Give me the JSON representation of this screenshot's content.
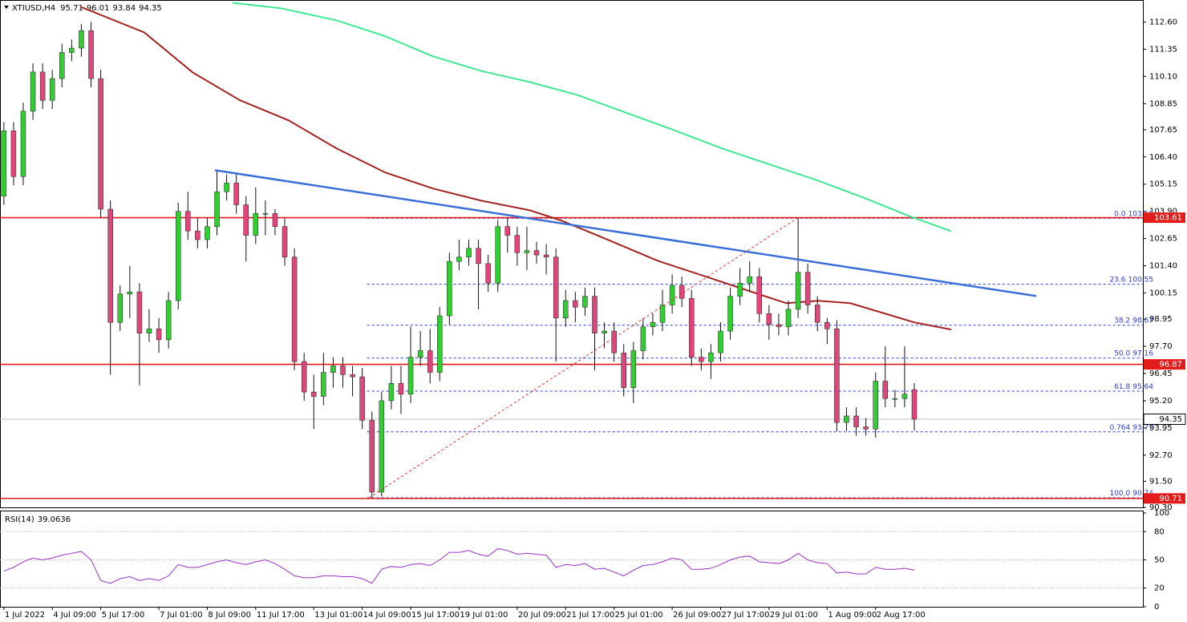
{
  "chart_data": [
    {
      "type": "candlestick",
      "title": "XTIUSD,H4",
      "categories": [
        "1 Jul 2022",
        null,
        null,
        null,
        null,
        "4 Jul 09:00",
        null,
        null,
        null,
        null,
        "5 Jul 17:00",
        null,
        null,
        null,
        null,
        null,
        "7 Jul 01:00",
        null,
        null,
        null,
        null,
        "8 Jul 09:00",
        null,
        null,
        null,
        null,
        "11 Jul 17:00",
        null,
        null,
        null,
        null,
        null,
        "13 Jul 01:00",
        null,
        null,
        null,
        null,
        "14 Jul 09:00",
        null,
        null,
        null,
        null,
        "15 Jul 17:00",
        null,
        null,
        null,
        null,
        "19 Jul 01:00",
        null,
        null,
        null,
        null,
        null,
        "20 Jul 09:00",
        null,
        null,
        null,
        null,
        "21 Jul 17:00",
        null,
        null,
        null,
        null,
        "25 Jul 01:00",
        null,
        null,
        null,
        null,
        null,
        "26 Jul 09:00",
        null,
        null,
        null,
        null,
        "27 Jul 17:00",
        null,
        null,
        null,
        null,
        "29 Jul 01:00",
        null,
        null,
        null,
        null,
        null,
        "1 Aug 09:00",
        null,
        null,
        null,
        null,
        "2 Aug 17:00",
        null,
        null,
        null,
        null
      ],
      "open": [
        104.6,
        107.6,
        105.5,
        108.5,
        110.3,
        109.0,
        110.0,
        111.2,
        111.4,
        112.2,
        110.0,
        104.0,
        98.8,
        100.1,
        100.2,
        98.3,
        98.5,
        98.0,
        99.8,
        103.9,
        103.0,
        102.6,
        103.2,
        104.8,
        105.2,
        104.2,
        102.8,
        103.8,
        103.8,
        103.2,
        101.8,
        97.0,
        95.6,
        95.4,
        96.5,
        96.8,
        96.4,
        96.3,
        94.3,
        91.0,
        95.2,
        96.0,
        95.5,
        97.2,
        97.5,
        96.5,
        99.1,
        101.6,
        101.8,
        102.2,
        101.5,
        100.6,
        103.2,
        102.8,
        102.0,
        102.1,
        101.9,
        101.8,
        99.0,
        99.8,
        99.5,
        100.0,
        98.3,
        98.4,
        97.4,
        95.8,
        97.5,
        98.6,
        98.8,
        99.6,
        100.5,
        99.9,
        97.2,
        97.0,
        97.4,
        98.4,
        100.0,
        100.6,
        100.9,
        99.2,
        98.7,
        98.6,
        99.4,
        101.1,
        99.6,
        98.8,
        98.5,
        94.2,
        94.5,
        94.0,
        93.9,
        96.1,
        95.3,
        95.3,
        95.71
      ],
      "high": [
        108.0,
        108.0,
        108.9,
        110.7,
        110.7,
        110.4,
        111.6,
        111.8,
        112.5,
        112.6,
        110.4,
        104.4,
        100.5,
        101.4,
        100.6,
        99.4,
        99.0,
        100.2,
        104.3,
        104.8,
        103.6,
        103.6,
        105.8,
        105.6,
        105.6,
        104.6,
        105.0,
        104.4,
        104.0,
        103.6,
        102.2,
        97.4,
        96.4,
        97.4,
        97.2,
        97.2,
        96.8,
        96.7,
        94.7,
        95.6,
        96.8,
        96.8,
        98.6,
        98.4,
        98.5,
        99.5,
        102.0,
        102.6,
        102.6,
        102.6,
        101.9,
        103.5,
        103.6,
        103.2,
        103.2,
        102.5,
        102.4,
        102.2,
        100.3,
        100.2,
        100.4,
        100.4,
        98.8,
        98.8,
        97.8,
        97.9,
        99.0,
        99.2,
        100.3,
        101.0,
        100.9,
        100.3,
        97.6,
        97.8,
        98.8,
        100.4,
        101.3,
        101.6,
        101.3,
        99.6,
        99.2,
        99.8,
        103.58,
        101.5,
        100.0,
        99.0,
        98.9,
        94.9,
        94.9,
        94.4,
        96.5,
        97.7,
        95.7,
        97.7,
        96.01
      ],
      "low": [
        104.2,
        105.1,
        105.1,
        108.1,
        108.6,
        108.6,
        109.6,
        110.8,
        111.0,
        109.6,
        103.6,
        96.4,
        98.4,
        99.0,
        95.9,
        97.9,
        97.4,
        97.6,
        99.4,
        102.6,
        102.2,
        102.2,
        102.8,
        104.4,
        103.8,
        101.6,
        102.4,
        102.8,
        102.8,
        101.4,
        96.6,
        95.2,
        93.9,
        95.0,
        95.8,
        95.8,
        95.4,
        93.9,
        90.74,
        90.8,
        94.8,
        94.6,
        95.1,
        96.8,
        96.0,
        96.1,
        98.7,
        101.2,
        101.4,
        99.4,
        100.2,
        100.2,
        102.0,
        101.4,
        101.2,
        101.5,
        101.0,
        97.0,
        98.6,
        98.8,
        99.1,
        96.6,
        97.6,
        97.0,
        95.4,
        95.1,
        97.1,
        98.2,
        98.4,
        99.2,
        99.5,
        96.8,
        96.6,
        96.2,
        97.0,
        98.0,
        99.6,
        100.2,
        98.8,
        98.0,
        98.2,
        98.2,
        99.0,
        99.2,
        98.4,
        97.8,
        93.8,
        93.8,
        93.6,
        93.6,
        93.5,
        94.9,
        94.9,
        94.9,
        93.84
      ],
      "close": [
        107.6,
        105.5,
        108.5,
        110.3,
        109.0,
        110.0,
        111.2,
        111.4,
        112.2,
        110.0,
        104.0,
        98.8,
        100.1,
        100.2,
        98.3,
        98.5,
        98.0,
        99.8,
        103.9,
        103.0,
        102.6,
        103.2,
        104.8,
        105.2,
        104.2,
        102.8,
        103.8,
        103.8,
        103.2,
        101.8,
        97.0,
        95.6,
        95.4,
        96.5,
        96.8,
        96.4,
        96.3,
        94.3,
        91.0,
        95.2,
        96.0,
        95.5,
        97.2,
        97.5,
        96.5,
        99.1,
        101.6,
        101.8,
        102.2,
        101.5,
        100.6,
        103.2,
        102.8,
        102.0,
        102.1,
        101.9,
        101.8,
        99.0,
        99.8,
        99.5,
        100.0,
        98.3,
        98.4,
        97.4,
        95.8,
        97.5,
        98.6,
        98.8,
        99.6,
        100.5,
        99.9,
        97.2,
        97.0,
        97.4,
        98.4,
        100.0,
        100.6,
        100.9,
        99.2,
        98.7,
        98.6,
        99.4,
        101.1,
        99.6,
        98.8,
        98.5,
        94.2,
        94.5,
        94.0,
        93.9,
        96.1,
        95.3,
        95.3,
        95.5,
        94.35
      ],
      "up_color": "#32cd32",
      "down_color": "#e0457b",
      "xlim": [
        -0.4,
        117.6
      ],
      "ylim": [
        90.3,
        113.5
      ],
      "yticks": [
        {
          "value": 112.6,
          "label": "112.60"
        },
        {
          "value": 111.35,
          "label": "111.35"
        },
        {
          "value": 110.1,
          "label": "110.10"
        },
        {
          "value": 108.85,
          "label": "108.85"
        },
        {
          "value": 107.65,
          "label": "107.65"
        },
        {
          "value": 106.4,
          "label": "106.40"
        },
        {
          "value": 105.15,
          "label": "105.15"
        },
        {
          "value": 103.9,
          "label": "103.90"
        },
        {
          "value": 102.65,
          "label": "102.65"
        },
        {
          "value": 101.4,
          "label": "101.40"
        },
        {
          "value": 100.15,
          "label": "100.15"
        },
        {
          "value": 98.95,
          "label": "98.95"
        },
        {
          "value": 97.7,
          "label": "97.70"
        },
        {
          "value": 96.45,
          "label": "96.45"
        },
        {
          "value": 95.2,
          "label": "95.20"
        },
        {
          "value": 93.95,
          "label": "93.95"
        },
        {
          "value": 92.7,
          "label": "92.70"
        },
        {
          "value": 91.5,
          "label": "91.50"
        },
        {
          "value": 90.3,
          "label": "90.30"
        }
      ],
      "moving_averages": [
        {
          "color": "#a52222",
          "x": [
            7.9,
            14.5,
            19.5,
            24.4,
            29.4,
            34.4,
            39.4,
            44.3,
            49.3,
            54.3,
            57.6,
            62.6,
            67.5,
            72.5,
            77.5,
            80.8,
            84.1,
            87.4,
            90.7,
            94.0,
            97.8
          ],
          "values": [
            113.3,
            112.12,
            110.28,
            109.0,
            108.08,
            106.78,
            105.68,
            104.95,
            104.39,
            103.95,
            103.47,
            102.55,
            101.63,
            100.9,
            100.16,
            99.68,
            99.79,
            99.68,
            99.24,
            98.8,
            98.47
          ]
        },
        {
          "color": "#3ee890",
          "x": [
            23.6,
            28.6,
            34.4,
            39.4,
            44.3,
            49.3,
            54.3,
            59.2,
            64.2,
            69.2,
            74.2,
            79.1,
            84.1,
            89.1,
            93.2,
            97.8
          ],
          "values": [
            113.48,
            113.23,
            112.67,
            111.94,
            111.02,
            110.35,
            109.84,
            109.25,
            108.44,
            107.63,
            106.78,
            106.05,
            105.31,
            104.47,
            103.73,
            102.99
          ]
        }
      ],
      "trendlines": [
        {
          "color": "#3b6fd8",
          "width": 2.5,
          "dashed": false,
          "x": [
            21.8,
            106.6
          ],
          "values": [
            105.79,
            100.01
          ]
        },
        {
          "color": "#e0302b",
          "width": 1,
          "dashed": true,
          "x": [
            37.7,
            81.9
          ],
          "values": [
            90.74,
            103.58
          ]
        }
      ],
      "levels": [
        103.61,
        96.87,
        90.71
      ],
      "level_color": "#e31b1b",
      "fibonacci": {
        "color": "#2b3bd6",
        "x_start": 37.5,
        "levels": [
          {
            "label": "0.0",
            "value": 103.58
          },
          {
            "label": "23.6",
            "value": 100.55
          },
          {
            "label": "38.2",
            "value": 98.67
          },
          {
            "label": "50.0",
            "value": 97.16
          },
          {
            "label": "61.8",
            "value": 95.64
          },
          {
            "label": "0.764",
            "value": 93.77
          },
          {
            "label": "100.0",
            "value": 90.74
          }
        ]
      }
    },
    {
      "type": "line",
      "title": "RSI(14)",
      "color": "#9b30c8",
      "values": [
        38,
        42,
        48,
        52,
        50,
        52,
        55,
        57,
        59,
        50,
        28,
        25,
        30,
        32,
        28,
        30,
        28,
        33,
        45,
        42,
        42,
        45,
        48,
        50,
        47,
        45,
        48,
        50,
        46,
        40,
        33,
        31,
        31,
        33,
        33,
        32,
        32,
        30,
        25,
        40,
        43,
        42,
        45,
        46,
        44,
        50,
        58,
        58,
        60,
        56,
        54,
        62,
        60,
        56,
        57,
        56,
        55,
        42,
        45,
        44,
        46,
        40,
        41,
        37,
        33,
        39,
        44,
        45,
        48,
        52,
        50,
        40,
        40,
        41,
        45,
        50,
        53,
        54,
        48,
        47,
        46,
        50,
        57,
        50,
        47,
        46,
        36,
        37,
        35,
        35,
        42,
        40,
        40,
        41,
        39.0636
      ],
      "ylim": [
        0,
        100
      ],
      "yticks": [
        100,
        80,
        50,
        20,
        0
      ]
    }
  ]
}
